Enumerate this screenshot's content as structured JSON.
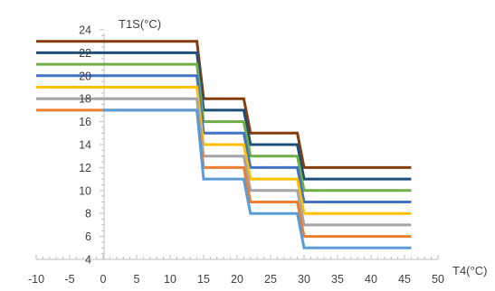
{
  "chart_data": {
    "type": "line",
    "title": "",
    "xlabel": "T4(°C)",
    "ylabel": "T1S(°C)",
    "xlim": [
      -10,
      50
    ],
    "ylim": [
      4,
      24
    ],
    "x_ticks": [
      -10,
      -5,
      0,
      5,
      10,
      15,
      20,
      25,
      30,
      35,
      40,
      45,
      50
    ],
    "y_ticks": [
      4,
      6,
      8,
      10,
      12,
      14,
      16,
      18,
      20,
      22,
      24
    ],
    "grid": false,
    "legend": "none",
    "series": [
      {
        "color": "#843C0C",
        "points": [
          [
            -10,
            23
          ],
          [
            14,
            23
          ],
          [
            15,
            18
          ],
          [
            21,
            18
          ],
          [
            22,
            15
          ],
          [
            29,
            15
          ],
          [
            30,
            12
          ],
          [
            46,
            12
          ]
        ]
      },
      {
        "color": "#1F4E79",
        "points": [
          [
            -10,
            22
          ],
          [
            14,
            22
          ],
          [
            15,
            17
          ],
          [
            21,
            17
          ],
          [
            22,
            14
          ],
          [
            29,
            14
          ],
          [
            30,
            11
          ],
          [
            46,
            11
          ]
        ]
      },
      {
        "color": "#70AD47",
        "points": [
          [
            -10,
            21
          ],
          [
            14,
            21
          ],
          [
            15,
            16
          ],
          [
            21,
            16
          ],
          [
            22,
            13
          ],
          [
            29,
            13
          ],
          [
            30,
            10
          ],
          [
            46,
            10
          ]
        ]
      },
      {
        "color": "#4472C4",
        "points": [
          [
            -10,
            20
          ],
          [
            14,
            20
          ],
          [
            15,
            15
          ],
          [
            21,
            15
          ],
          [
            22,
            12
          ],
          [
            29,
            12
          ],
          [
            30,
            9
          ],
          [
            46,
            9
          ]
        ]
      },
      {
        "color": "#FFC000",
        "points": [
          [
            -10,
            19
          ],
          [
            14,
            19
          ],
          [
            15,
            14
          ],
          [
            21,
            14
          ],
          [
            22,
            11
          ],
          [
            29,
            11
          ],
          [
            30,
            8
          ],
          [
            46,
            8
          ]
        ]
      },
      {
        "color": "#A5A5A5",
        "points": [
          [
            -10,
            18
          ],
          [
            14,
            18
          ],
          [
            15,
            13
          ],
          [
            21,
            13
          ],
          [
            22,
            10
          ],
          [
            29,
            10
          ],
          [
            30,
            7
          ],
          [
            46,
            7
          ]
        ]
      },
      {
        "color": "#ED7D31",
        "points": [
          [
            -10,
            17
          ],
          [
            14,
            17
          ],
          [
            15,
            12
          ],
          [
            21,
            12
          ],
          [
            22,
            9
          ],
          [
            29,
            9
          ],
          [
            30,
            6
          ],
          [
            46,
            6
          ]
        ]
      },
      {
        "color": "#5B9BD5",
        "points": [
          [
            0,
            17
          ],
          [
            14,
            17
          ],
          [
            15,
            11
          ],
          [
            21,
            11
          ],
          [
            22,
            8
          ],
          [
            29,
            8
          ],
          [
            30,
            5
          ],
          [
            46,
            5
          ]
        ]
      }
    ]
  }
}
